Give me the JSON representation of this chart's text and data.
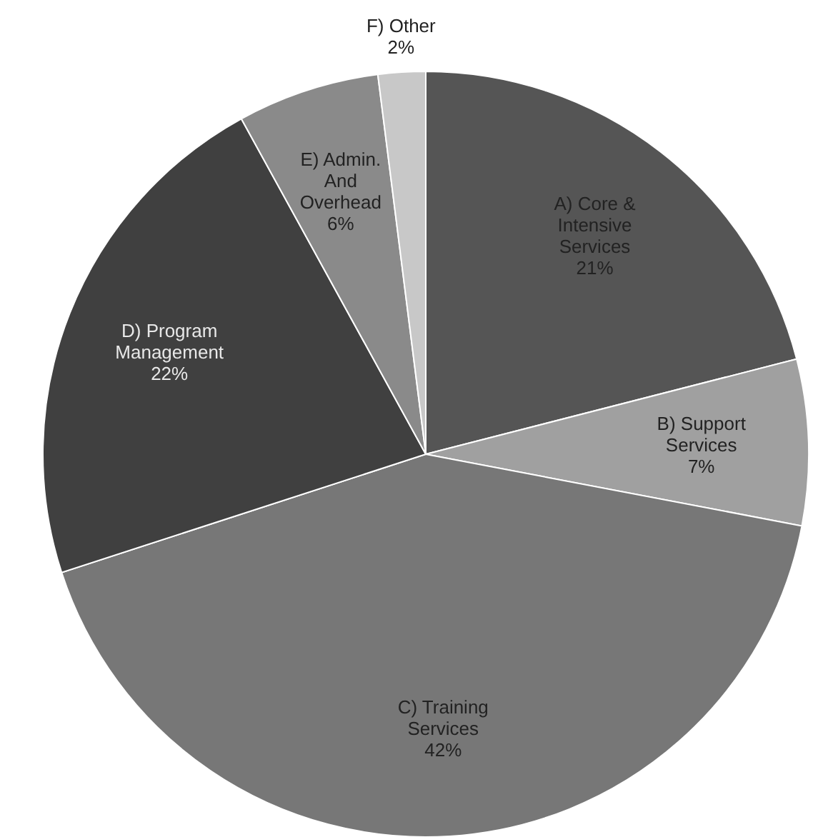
{
  "chart_data": {
    "type": "pie",
    "categories": [
      "A) Core & Intensive Services",
      "B) Support Services",
      "C) Training Services",
      "D) Program Management",
      "E) Admin. And Overhead",
      "F) Other"
    ],
    "values": [
      21,
      7,
      42,
      22,
      6,
      2
    ],
    "value_labels": [
      "21%",
      "7%",
      "42%",
      "22%",
      "6%",
      "2%"
    ],
    "colors": [
      "#555555",
      "#a0a0a0",
      "#777777",
      "#404040",
      "#8a8a8a",
      "#c8c8c8"
    ]
  }
}
